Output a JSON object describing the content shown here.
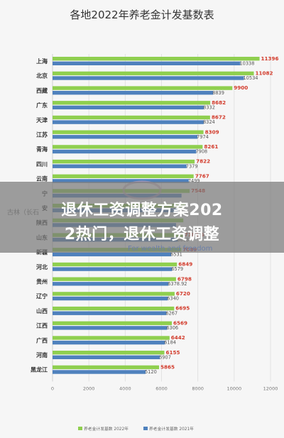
{
  "chart_data": {
    "type": "bar",
    "orientation": "horizontal",
    "title": "各地2022年养老金计发基数表",
    "categories": [
      "上海",
      "北京",
      "西藏",
      "广东",
      "天津",
      "江苏",
      "青海",
      "四川",
      "云南",
      "宁夏",
      "安徽",
      "陕西",
      "山东",
      "新疆",
      "河北",
      "贵州",
      "辽宁",
      "山西",
      "江西",
      "广西",
      "河南",
      "黑龙江"
    ],
    "category_labels_visible": [
      "上海",
      "北京",
      "西藏",
      "广东",
      "天津",
      "江苏",
      "青海",
      "四川",
      "云南",
      "宁",
      "安",
      "陕西",
      "山东",
      "新疆",
      "河北",
      "贵州",
      "辽宁",
      "山西",
      "江西",
      "广西",
      "河南",
      "黑龙江"
    ],
    "series": [
      {
        "name": "养老金计发基数 2022年",
        "color": "#8fcf4f",
        "values": [
          11396,
          11082,
          9900,
          8682,
          8672,
          8309,
          8261,
          7822,
          7767,
          7548,
          7300,
          7200,
          7182.5,
          7089,
          6849,
          6798,
          6720,
          6695,
          6569,
          6442,
          6155,
          5865
        ],
        "labels": [
          "11396",
          "11082",
          "9900",
          "8682",
          "8672",
          "8309",
          "8261",
          "7822",
          "7767",
          "7548",
          "",
          "",
          "7182.5",
          "7089",
          "6849",
          "6798",
          "6720",
          "6695",
          "6569",
          "6442",
          "6155",
          "5865"
        ]
      },
      {
        "name": "养老金计发基数 2021年",
        "color": "#4f81bd",
        "values": [
          10338,
          10534,
          8839,
          8332,
          8324,
          7974,
          7908,
          7379,
          7499,
          7100,
          6900,
          6800,
          6893,
          6531,
          6579,
          6378.92,
          6340,
          6267,
          6306,
          6184,
          5907,
          5120
        ],
        "labels": [
          "10338",
          "10534",
          "8839",
          "8332",
          "8324",
          "7974",
          "7908",
          "7379",
          "7499",
          "",
          "",
          "",
          "6893",
          "6531",
          "6579",
          "6378.92",
          "6340",
          "6267",
          "6306",
          "6184",
          "5907",
          "5120"
        ]
      }
    ],
    "xlim": [
      0,
      12000
    ],
    "xticks": [
      "0",
      "2000",
      "4000",
      "6000",
      "8000",
      "10000",
      "12000"
    ],
    "legend_position": "bottom",
    "grid": true
  },
  "overlay": {
    "line1": "退休工资调整方案202",
    "line2": "2热门，退休工资调整"
  },
  "watermark": {
    "tagline": "For wealth and freedom",
    "side_text": "古林（长石"
  },
  "colors": {
    "green": "#8fcf4f",
    "blue": "#4f81bd",
    "value_label_red": "#d23b2b",
    "overlay": "#787878"
  }
}
